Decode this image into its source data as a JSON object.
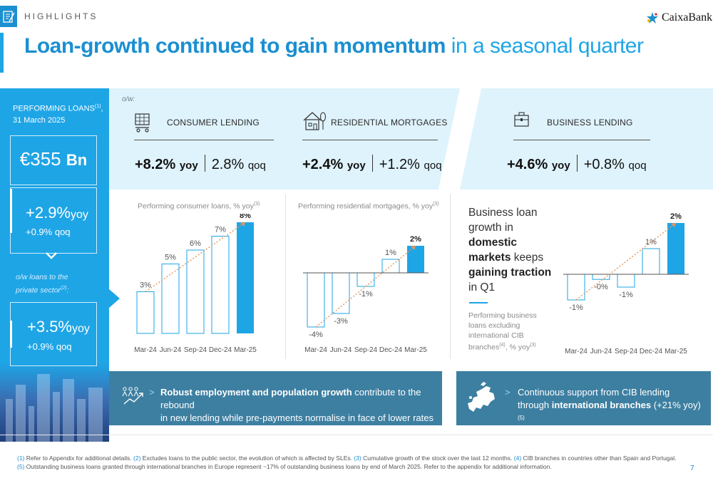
{
  "header": {
    "section": "HIGHLIGHTS",
    "title_strong": "Loan-growth continued to gain momentum",
    "title_light": " in a seasonal quarter",
    "brand": "CaixaBank"
  },
  "left_panel": {
    "label_line1": "PERFORMING LOANS",
    "label_sup": "(1)",
    "label_line1_tail": ",",
    "label_line2": "31 March 2025",
    "total_value": "€355",
    "total_unit": "Bn",
    "total_yoy": "+2.9%",
    "total_yoy_unit": "yoy",
    "total_qoq": "+0.9% qoq",
    "ow_line1": "o/w loans to the",
    "ow_line2": "private sector",
    "ow_sup": "(2)",
    "ow_tail": ":",
    "private_yoy": "+3.5%",
    "private_yoy_unit": "yoy",
    "private_qoq": "+0.9% qoq"
  },
  "band": {
    "ow": "o/w:",
    "consumer": {
      "label": "CONSUMER LENDING",
      "yoy": "+8.2%",
      "yoy_unit": "yoy",
      "qoq": "2.8%",
      "qoq_unit": "qoq"
    },
    "mortgages": {
      "label": "RESIDENTIAL MORTGAGES",
      "yoy": "+2.4%",
      "yoy_unit": "yoy",
      "qoq": "+1.2%",
      "qoq_unit": "qoq"
    },
    "business": {
      "label": "BUSINESS LENDING",
      "yoy": "+4.6%",
      "yoy_unit": "yoy",
      "qoq": "+0.8%",
      "qoq_unit": "qoq"
    }
  },
  "charts_text": {
    "consumer_title": "Performing consumer loans, % yoy",
    "consumer_sup": "(3)",
    "mortgage_title": "Performing residential mortgages, % yoy",
    "mortgage_sup": "(3)",
    "biz_l1": "Business loan",
    "biz_l2": "growth in",
    "biz_l3": "domestic",
    "biz_l4": "markets",
    "biz_l4_tail": " keeps",
    "biz_l5": "gaining traction",
    "biz_l6": "in Q1",
    "biz_note_1": "Performing business loans excluding international CIB branches",
    "biz_note_sup1": "(4)",
    "biz_note_2": ", % yoy",
    "biz_note_sup2": "(3)"
  },
  "chart_data": [
    {
      "type": "bar",
      "categories": [
        "Mar-24",
        "Jun-24",
        "Sep-24",
        "Dec-24",
        "Mar-25"
      ],
      "values": [
        3,
        5,
        6,
        7,
        8
      ],
      "data_labels": [
        "3%",
        "5%",
        "6%",
        "7%",
        "8%"
      ],
      "highlight_last": true,
      "trend_line": true
    },
    {
      "type": "bar",
      "categories": [
        "Mar-24",
        "Jun-24",
        "Sep-24",
        "Dec-24",
        "Mar-25"
      ],
      "values": [
        -4,
        -3,
        -1,
        1,
        2
      ],
      "data_labels": [
        "-4%",
        "-3%",
        "-1%",
        "1%",
        "2%"
      ],
      "highlight_last": true,
      "trend_line": true
    },
    {
      "type": "bar",
      "categories": [
        "Mar-24",
        "Jun-24",
        "Sep-24",
        "Dec-24",
        "Mar-25"
      ],
      "values": [
        -1,
        -0.2,
        -0.5,
        1,
        2
      ],
      "data_labels": [
        "-1%",
        "-0%",
        "-1%",
        "1%",
        "2%"
      ],
      "highlight_last": true,
      "trend_line": true
    }
  ],
  "banners": {
    "left_bold": "Robust employment and population growth",
    "left_rest1": " contribute to the rebound",
    "left_line2": "in new lending while pre-payments normalise in face of lower rates",
    "right_line1": "Continuous support from CIB lending",
    "right_pre": "through ",
    "right_bold": "international branches",
    "right_tail": " (+21% yoy)",
    "right_sup": "(5)",
    "arrow": ">"
  },
  "footnotes": {
    "n1": "(1)",
    "t1": " Refer to Appendix for additional details. ",
    "n2": "(2)",
    "t2": " Excludes loans to the public sector, the evolution of which is affected by SLEs. ",
    "n3": "(3)",
    "t3": " Cumulative growth of the stock over the last 12 months. ",
    "n4": "(4)",
    "t4": " CIB branches in countries other than Spain and Portugal.",
    "n5": "(5)",
    "t5": " Outstanding business loans granted through international branches in Europe represent ~17% of outstanding business loans by end of March 2025. Refer to the appendix for additional information."
  },
  "page_number": "7",
  "colors": {
    "brand_blue": "#1b8fd0",
    "panel_blue": "#1ea5e6",
    "band_light": "#dff3fc",
    "banner": "#3d7fa1",
    "trend": "#e8945a"
  }
}
